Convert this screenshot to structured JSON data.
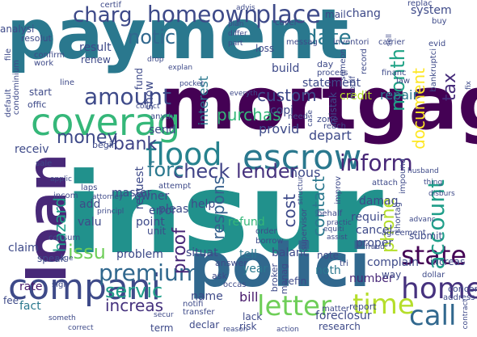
{
  "words": [
    {
      "text": "payment",
      "color": "#2a788e"
    },
    {
      "text": "insur",
      "color": "#21918c"
    },
    {
      "text": "mortgag",
      "color": "#440154"
    },
    {
      "text": "polici",
      "color": "#31688e"
    },
    {
      "text": "loan",
      "color": "#482878"
    },
    {
      "text": "coverag",
      "color": "#35b779"
    },
    {
      "text": "compani",
      "color": "#3e4a89"
    },
    {
      "text": "escrow",
      "color": "#2a788e"
    },
    {
      "text": "flood",
      "color": "#26828e"
    },
    {
      "text": "home",
      "color": "#46327e"
    },
    {
      "text": "call",
      "color": "#31688e"
    },
    {
      "text": "time",
      "color": "#b5de2b"
    },
    {
      "text": "letter",
      "color": "#6ece58"
    },
    {
      "text": "state",
      "color": "#440154"
    },
    {
      "text": "premium",
      "color": "#31688e"
    },
    {
      "text": "amount",
      "color": "#3e4a89"
    },
    {
      "text": "account",
      "color": "#1f9e89"
    },
    {
      "text": "inform",
      "color": "#482878"
    },
    {
      "text": "check",
      "color": "#404387"
    },
    {
      "text": "lender",
      "color": "#46327e"
    },
    {
      "text": "homeown",
      "color": "#3e4a89"
    },
    {
      "text": "place",
      "color": "#3e4a89"
    },
    {
      "text": "date",
      "color": "#2a788e"
    },
    {
      "text": "notic",
      "color": "#31688e"
    },
    {
      "text": "charg",
      "color": "#3e4a89"
    },
    {
      "text": "bank",
      "color": "#404387"
    },
    {
      "text": "money",
      "color": "#3e4a89"
    },
    {
      "text": "forc",
      "color": "#2a788e"
    },
    {
      "text": "servic",
      "color": "#1f9e89"
    },
    {
      "text": "hazard",
      "color": "#1f9e89"
    },
    {
      "text": "issu",
      "color": "#6ece58"
    },
    {
      "text": "proof",
      "color": "#482878"
    },
    {
      "text": "tax",
      "color": "#472d7b"
    },
    {
      "text": "month",
      "color": "#20a386"
    },
    {
      "text": "document",
      "color": "#fde725"
    },
    {
      "text": "increas",
      "color": "#46327e"
    },
    {
      "text": "cost",
      "color": "#3e4a89"
    },
    {
      "text": "phone",
      "color": "#b5de2b"
    },
    {
      "text": "contact",
      "color": "#2a788e"
    },
    {
      "text": "respons",
      "color": "#355f8d"
    },
    {
      "text": "interest",
      "color": "#2a788e"
    },
    {
      "text": "custom",
      "color": "#3e4a89"
    },
    {
      "text": "purchas",
      "color": "#35b779"
    },
    {
      "text": "repair",
      "color": "#2a788e"
    },
    {
      "text": "claim",
      "color": "#3e4a89"
    },
    {
      "text": "year",
      "color": "#2a788e"
    },
    {
      "text": "refund",
      "color": "#35b779"
    },
    {
      "text": "balanc",
      "color": "#3e4a89"
    },
    {
      "text": "problem",
      "color": "#3e4a89"
    },
    {
      "text": "situat",
      "color": "#3e4a89"
    },
    {
      "text": "fact",
      "color": "#2a788e"
    },
    {
      "text": "rate",
      "color": "#481a6c"
    },
    {
      "text": "speak",
      "color": "#3e4a89"
    },
    {
      "text": "name",
      "color": "#3e4a89"
    },
    {
      "text": "bill",
      "color": "#481a6c"
    },
    {
      "text": "tell",
      "color": "#2a788e"
    },
    {
      "text": "noth",
      "color": "#2a788e"
    },
    {
      "text": "number",
      "color": "#482878"
    },
    {
      "text": "refin",
      "color": "#3e4a89"
    },
    {
      "text": "complain",
      "color": "#3e4a89"
    },
    {
      "text": "proper",
      "color": "#3e4a89"
    },
    {
      "text": "cancel",
      "color": "#3e4a89"
    },
    {
      "text": "requir",
      "color": "#3e4a89"
    },
    {
      "text": "depart",
      "color": "#3e4a89"
    },
    {
      "text": "hous",
      "color": "#3e4a89"
    },
    {
      "text": "provid",
      "color": "#3e4a89"
    },
    {
      "text": "master",
      "color": "#3e4a89"
    },
    {
      "text": "request",
      "color": "#3e4a89"
    },
    {
      "text": "pleas",
      "color": "#3e4a89"
    },
    {
      "text": "owner",
      "color": "#3e4a89"
    },
    {
      "text": "error",
      "color": "#3e4a89"
    },
    {
      "text": "point",
      "color": "#3e4a89"
    },
    {
      "text": "valu",
      "color": "#3e4a89"
    },
    {
      "text": "unit",
      "color": "#3e4a89"
    },
    {
      "text": "help",
      "color": "#3e4a89"
    },
    {
      "text": "add",
      "color": "#3e4a89"
    },
    {
      "text": "send",
      "color": "#3e4a89"
    },
    {
      "text": "receiv",
      "color": "#3e4a89"
    },
    {
      "text": "result",
      "color": "#3e4a89"
    },
    {
      "text": "statement",
      "color": "#3e4a89"
    },
    {
      "text": "build",
      "color": "#3e4a89"
    },
    {
      "text": "credit",
      "color": "#b5de2b"
    },
    {
      "text": "damag",
      "color": "#3e4a89"
    },
    {
      "text": "copi",
      "color": "#3e4a89"
    },
    {
      "text": "show",
      "color": "#3e4a89"
    },
    {
      "text": "fund",
      "color": "#3e4a89"
    },
    {
      "text": "mistak",
      "color": "#3e4a89"
    },
    {
      "text": "foreclosur",
      "color": "#3e4a89"
    },
    {
      "text": "report",
      "color": "#3e4a89"
    },
    {
      "text": "loss",
      "color": "#3e4a89"
    },
    {
      "text": "system",
      "color": "#3e4a89"
    },
    {
      "text": "chang",
      "color": "#3e4a89"
    },
    {
      "text": "renew",
      "color": "#3e4a89"
    },
    {
      "text": "mail",
      "color": "#3e4a89"
    },
    {
      "text": "fee",
      "color": "#3e4a89"
    },
    {
      "text": "way",
      "color": "#3e4a89"
    },
    {
      "text": "increas",
      "color": "#3e4a89"
    },
    {
      "text": "concern",
      "color": "#3e4a89"
    },
    {
      "text": "submit",
      "color": "#3e4a89"
    },
    {
      "text": "analysi",
      "color": "#3e4a89"
    },
    {
      "text": "resolut",
      "color": "#3e4a89"
    },
    {
      "text": "certif",
      "color": "#3e4a89"
    },
    {
      "text": "messag",
      "color": "#3e4a89"
    },
    {
      "text": "inventori",
      "color": "#3e4a89"
    },
    {
      "text": "carrier",
      "color": "#3e4a89"
    },
    {
      "text": "file",
      "color": "#3e4a89"
    },
    {
      "text": "condominium",
      "color": "#3e4a89"
    },
    {
      "text": "confirm",
      "color": "#3e4a89"
    },
    {
      "text": "work",
      "color": "#3e4a89"
    },
    {
      "text": "start",
      "color": "#3e4a89"
    },
    {
      "text": "offic",
      "color": "#3e4a89"
    },
    {
      "text": "line",
      "color": "#3e4a89"
    },
    {
      "text": "sale",
      "color": "#3e4a89"
    },
    {
      "text": "applic",
      "color": "#3e4a89"
    },
    {
      "text": "incom",
      "color": "#3e4a89"
    },
    {
      "text": "consum",
      "color": "#3e4a89"
    },
    {
      "text": "someth",
      "color": "#3e4a89"
    },
    {
      "text": "correct",
      "color": "#3e4a89"
    },
    {
      "text": "sign",
      "color": "#3e4a89"
    },
    {
      "text": "page",
      "color": "#3e4a89"
    },
    {
      "text": "term",
      "color": "#3e4a89"
    },
    {
      "text": "declar",
      "color": "#3e4a89"
    },
    {
      "text": "reason",
      "color": "#3e4a89"
    },
    {
      "text": "risk",
      "color": "#3e4a89"
    },
    {
      "text": "action",
      "color": "#3e4a89"
    },
    {
      "text": "research",
      "color": "#3e4a89"
    },
    {
      "text": "matter",
      "color": "#3e4a89"
    },
    {
      "text": "lack",
      "color": "#3e4a89"
    },
    {
      "text": "transfer",
      "color": "#3e4a89"
    },
    {
      "text": "notifi",
      "color": "#3e4a89"
    },
    {
      "text": "secur",
      "color": "#3e4a89"
    },
    {
      "text": "occas",
      "color": "#3e4a89"
    },
    {
      "text": "manag",
      "color": "#3e4a89"
    },
    {
      "text": "broker",
      "color": "#3e4a89"
    },
    {
      "text": "borrow",
      "color": "#3e4a89"
    },
    {
      "text": "order",
      "color": "#3e4a89"
    },
    {
      "text": "note",
      "color": "#3e4a89"
    },
    {
      "text": "tri",
      "color": "#3e4a89"
    },
    {
      "text": "fraud",
      "color": "#3e4a89"
    },
    {
      "text": "shortag",
      "color": "#3e4a89"
    },
    {
      "text": "dollar",
      "color": "#3e4a89"
    },
    {
      "text": "address",
      "color": "#3e4a89"
    },
    {
      "text": "contract",
      "color": "#3e4a89"
    },
    {
      "text": "disburs",
      "color": "#3e4a89"
    },
    {
      "text": "advanc",
      "color": "#3e4a89"
    },
    {
      "text": "impound",
      "color": "#3e4a89"
    },
    {
      "text": "agreement",
      "color": "#3e4a89"
    },
    {
      "text": "thing",
      "color": "#3e4a89"
    },
    {
      "text": "attach",
      "color": "#3e4a89"
    },
    {
      "text": "husband",
      "color": "#3e4a89"
    },
    {
      "text": "reach",
      "color": "#3e4a89"
    },
    {
      "text": "zone",
      "color": "#3e4a89"
    },
    {
      "text": "need",
      "color": "#3e4a89"
    },
    {
      "text": "behalf",
      "color": "#3e4a89"
    },
    {
      "text": "practic",
      "color": "#3e4a89"
    },
    {
      "text": "assist",
      "color": "#3e4a89"
    },
    {
      "text": "equiti",
      "color": "#3e4a89"
    },
    {
      "text": "supervisor",
      "color": "#3e4a89"
    },
    {
      "text": "structur",
      "color": "#3e4a89"
    },
    {
      "text": "improv",
      "color": "#3e4a89"
    },
    {
      "text": "attempt",
      "color": "#3e4a89"
    },
    {
      "text": "anyth",
      "color": "#3e4a89"
    },
    {
      "text": "begin",
      "color": "#3e4a89"
    },
    {
      "text": "laps",
      "color": "#3e4a89"
    },
    {
      "text": "attorney",
      "color": "#3e4a89"
    },
    {
      "text": "principl",
      "color": "#3e4a89"
    },
    {
      "text": "answer",
      "color": "#3e4a89"
    },
    {
      "text": "ask",
      "color": "#3e4a89"
    },
    {
      "text": "day",
      "color": "#3e4a89"
    },
    {
      "text": "process",
      "color": "#3e4a89"
    },
    {
      "text": "someon",
      "color": "#3e4a89"
    },
    {
      "text": "modif",
      "color": "#3e4a89"
    },
    {
      "text": "record",
      "color": "#3e4a89"
    },
    {
      "text": "bankruptci",
      "color": "#3e4a89"
    },
    {
      "text": "evid",
      "color": "#3e4a89"
    },
    {
      "text": "buy",
      "color": "#3e4a89"
    },
    {
      "text": "replac",
      "color": "#3e4a89"
    },
    {
      "text": "financ",
      "color": "#3e4a89"
    },
    {
      "text": "law",
      "color": "#3e4a89"
    },
    {
      "text": "cover",
      "color": "#3e4a89"
    },
    {
      "text": "advis",
      "color": "#3e4a89"
    },
    {
      "text": "plan",
      "color": "#3e4a89"
    },
    {
      "text": "differ",
      "color": "#3e4a89"
    },
    {
      "text": "part",
      "color": "#3e4a89"
    },
    {
      "text": "drop",
      "color": "#3e4a89"
    },
    {
      "text": "explan",
      "color": "#3e4a89"
    },
    {
      "text": "pocket",
      "color": "#3e4a89"
    },
    {
      "text": "collect",
      "color": "#3e4a89"
    },
    {
      "text": "default",
      "color": "#3e4a89"
    },
    {
      "text": "case",
      "color": "#3e4a89"
    },
    {
      "text": "everyth",
      "color": "#3e4a89"
    },
    {
      "text": "sell",
      "color": "#3e4a89"
    },
    {
      "text": "fix",
      "color": "#3e4a89"
    },
    {
      "text": "delinqu",
      "color": "#3e4a89"
    }
  ]
}
